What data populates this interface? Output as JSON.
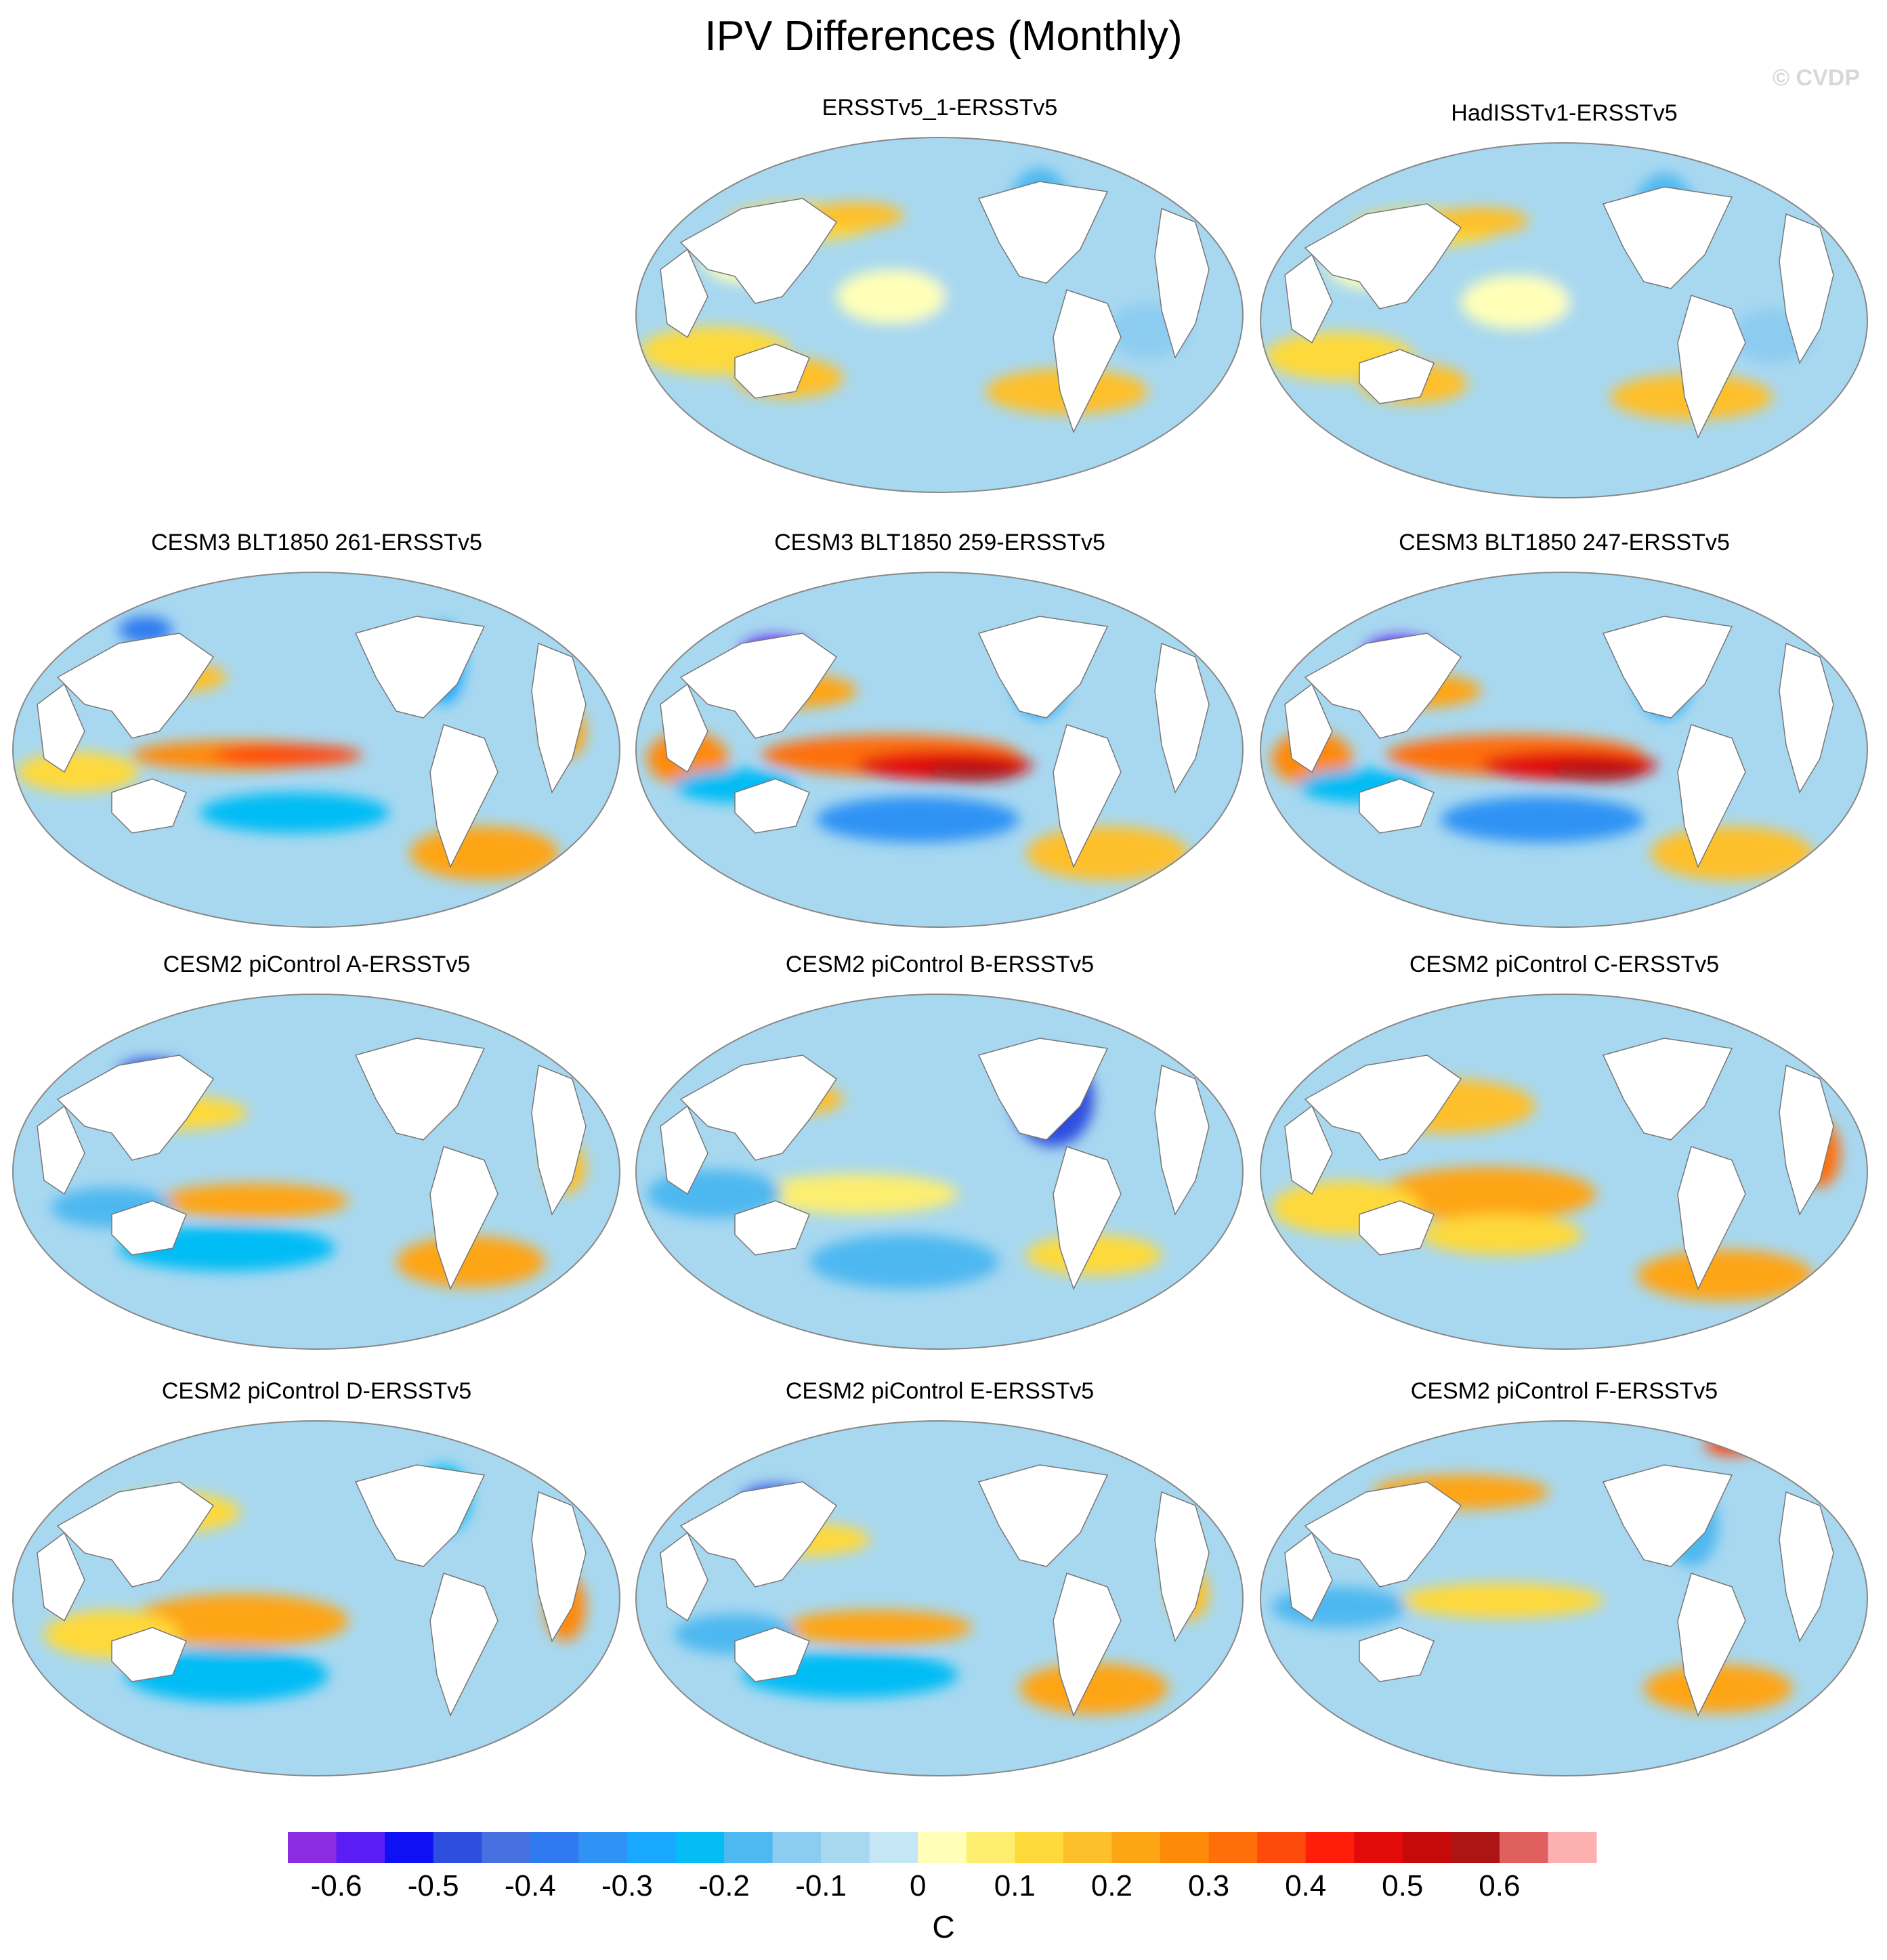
{
  "title": "IPV Differences (Monthly)",
  "watermark": "© CVDP",
  "panels": [
    {
      "id": "p1",
      "title": "ERSSTv5_1-ERSSTv5",
      "pattern": "obs"
    },
    {
      "id": "p2",
      "title": "HadISSTv1-ERSSTv5",
      "pattern": "obs"
    },
    {
      "id": "p3",
      "title": "CESM3 BLT1850 261-ERSSTv5",
      "pattern": "enso_mod"
    },
    {
      "id": "p4",
      "title": "CESM3 BLT1850 259-ERSSTv5",
      "pattern": "enso_strong"
    },
    {
      "id": "p5",
      "title": "CESM3 BLT1850 247-ERSSTv5",
      "pattern": "enso_strong"
    },
    {
      "id": "p6",
      "title": "CESM2 piControl A-ERSSTv5",
      "pattern": "weak"
    },
    {
      "id": "p7",
      "title": "CESM2 piControl B-ERSSTv5",
      "pattern": "weak_cool"
    },
    {
      "id": "p8",
      "title": "CESM2 piControl C-ERSSTv5",
      "pattern": "warm"
    },
    {
      "id": "p9",
      "title": "CESM2 piControl D-ERSSTv5",
      "pattern": "warm_mod"
    },
    {
      "id": "p10",
      "title": "CESM2 piControl E-ERSSTv5",
      "pattern": "weak"
    },
    {
      "id": "p11",
      "title": "CESM2 piControl F-ERSSTv5",
      "pattern": "weak_warm"
    }
  ],
  "colorbar": {
    "colors": [
      "#8b2be2",
      "#5a1ef5",
      "#1010f5",
      "#2e4ee0",
      "#4770e0",
      "#2f7af0",
      "#2e93f5",
      "#19a8ff",
      "#05bcf5",
      "#4eb8f0",
      "#8cccf0",
      "#a8d8f0",
      "#c4e6f5",
      "#ffffb8",
      "#fdee70",
      "#fed93a",
      "#fec02a",
      "#fea516",
      "#fe8a0a",
      "#fe6f0a",
      "#fe4a0a",
      "#fe1e0a",
      "#e30a0a",
      "#c60a0a",
      "#ad1414",
      "#e06060",
      "#fcb0b0"
    ],
    "labels": [
      "-0.6",
      "-0.5",
      "-0.4",
      "-0.3",
      "-0.2",
      "-0.1",
      "0",
      "0.1",
      "0.2",
      "0.3",
      "0.4",
      "0.5",
      "0.6"
    ],
    "units": "C"
  }
}
